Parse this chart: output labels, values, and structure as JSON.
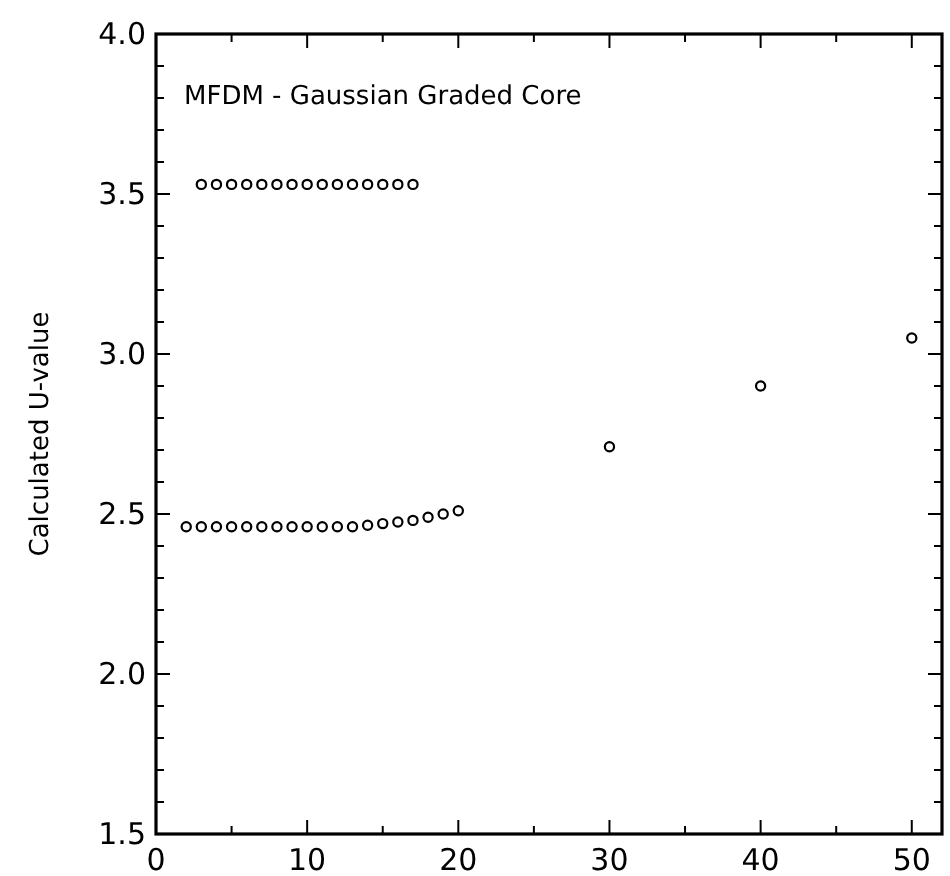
{
  "chart_data": {
    "type": "scatter",
    "ylabel": "Calculated U-value",
    "annotations": [
      "MFDM - Gaussian Graded Core"
    ],
    "xlim": [
      0,
      52
    ],
    "ylim": [
      1.5,
      4.0
    ],
    "xticks": [
      0,
      {
        "value": 5,
        "label": null
      },
      10,
      {
        "value": 15,
        "label": null
      },
      20,
      {
        "value": 25,
        "label": null
      },
      30,
      {
        "value": 35,
        "label": null
      },
      40,
      {
        "value": 45,
        "label": null
      },
      50
    ],
    "yticks": [
      {
        "value": 1.5,
        "label": "1.5"
      },
      {
        "value": 1.6,
        "label": null
      },
      {
        "value": 1.7,
        "label": null
      },
      {
        "value": 1.8,
        "label": null
      },
      {
        "value": 1.9,
        "label": null
      },
      {
        "value": 2.0,
        "label": "2.0"
      },
      {
        "value": 2.1,
        "label": null
      },
      {
        "value": 2.2,
        "label": null
      },
      {
        "value": 2.3,
        "label": null
      },
      {
        "value": 2.4,
        "label": null
      },
      {
        "value": 2.5,
        "label": "2.5"
      },
      {
        "value": 2.6,
        "label": null
      },
      {
        "value": 2.7,
        "label": null
      },
      {
        "value": 2.8,
        "label": null
      },
      {
        "value": 2.9,
        "label": null
      },
      {
        "value": 3.0,
        "label": "3.0"
      },
      {
        "value": 3.1,
        "label": null
      },
      {
        "value": 3.2,
        "label": null
      },
      {
        "value": 3.3,
        "label": null
      },
      {
        "value": 3.4,
        "label": null
      },
      {
        "value": 3.5,
        "label": "3.5"
      },
      {
        "value": 3.6,
        "label": null
      },
      {
        "value": 3.7,
        "label": null
      },
      {
        "value": 3.8,
        "label": null
      },
      {
        "value": 3.9,
        "label": null
      },
      {
        "value": 4.0,
        "label": "4.0"
      }
    ],
    "grid": false,
    "marker": "circle",
    "series": [
      {
        "color": "#000000",
        "x": [
          3,
          4,
          5,
          6,
          7,
          8,
          9,
          10,
          11,
          12,
          13,
          14,
          15,
          16,
          17
        ],
        "values": [
          3.53,
          3.53,
          3.53,
          3.53,
          3.53,
          3.53,
          3.53,
          3.53,
          3.53,
          3.53,
          3.53,
          3.53,
          3.53,
          3.53,
          3.53
        ]
      },
      {
        "color": "#000000",
        "x": [
          2,
          3,
          4,
          5,
          6,
          7,
          8,
          9,
          10,
          11,
          12,
          13,
          14,
          15,
          16,
          17,
          18,
          19,
          20,
          30,
          40,
          50
        ],
        "values": [
          2.46,
          2.46,
          2.46,
          2.46,
          2.46,
          2.46,
          2.46,
          2.46,
          2.46,
          2.46,
          2.46,
          2.46,
          2.465,
          2.47,
          2.475,
          2.48,
          2.49,
          2.5,
          2.51,
          2.71,
          2.9,
          3.05
        ]
      }
    ]
  }
}
